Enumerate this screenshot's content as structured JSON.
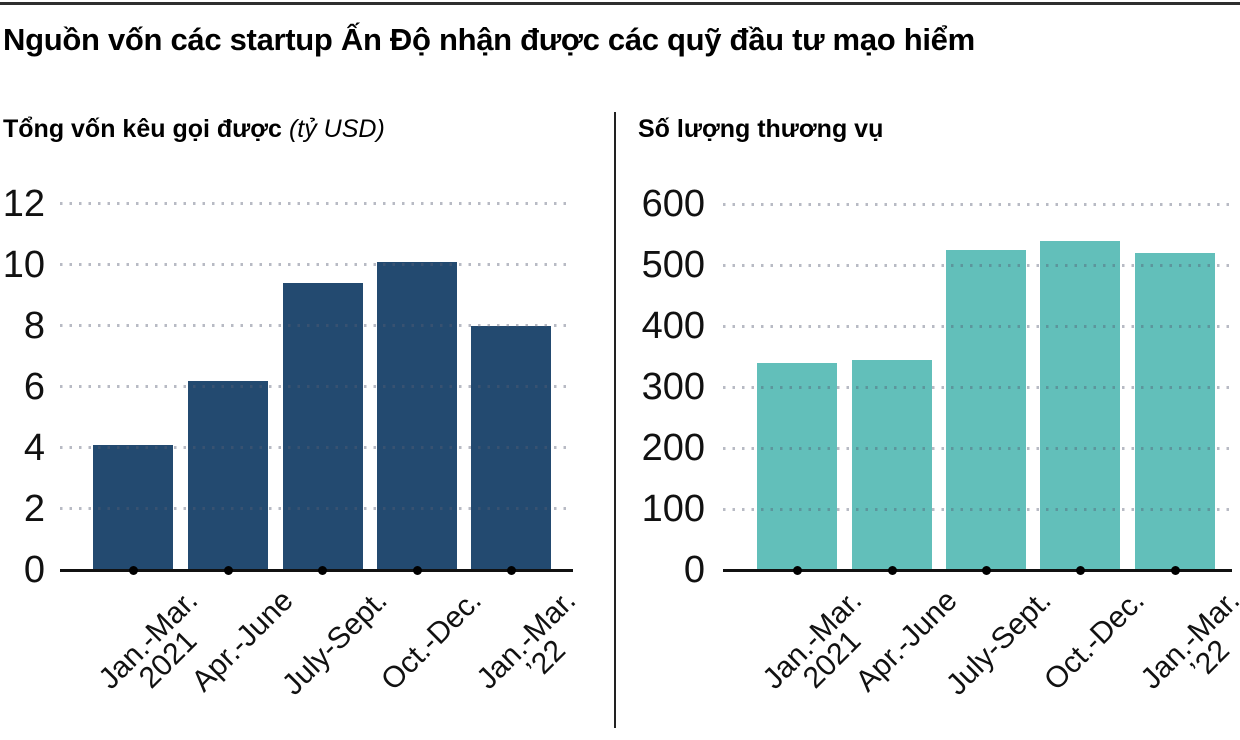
{
  "header": {
    "title": "Nguồn vốn các startup Ấn Độ nhận được các quỹ đầu tư mạo hiểm"
  },
  "panels": [
    {
      "subtitle": "Tổng vốn kêu gọi được",
      "unit_note": "(tỷ USD)"
    },
    {
      "subtitle": "Số lượng thương vụ",
      "unit_note": ""
    }
  ],
  "chart_data": [
    {
      "type": "bar",
      "title": "Tổng vốn kêu gọi được (tỷ USD)",
      "ylabel": "tỷ USD",
      "categories": [
        "Jan.-Mar. 2021",
        "Apr.-June",
        "July-Sept.",
        "Oct.-Dec.",
        "Jan.-Mar. ’22"
      ],
      "category_lines": [
        [
          "Jan.-Mar.",
          "2021"
        ],
        [
          "Apr.-June"
        ],
        [
          "July-Sept."
        ],
        [
          "Oct.-Dec."
        ],
        [
          "Jan.-Mar.",
          "’22"
        ]
      ],
      "values": [
        4.1,
        6.2,
        9.4,
        10.1,
        8
      ],
      "ylim": [
        0,
        12
      ],
      "ytick_step": 2,
      "grid": "dotted-horizontal",
      "legend": "none",
      "bar_color": "#234A70"
    },
    {
      "type": "bar",
      "title": "Số lượng thương vụ",
      "ylabel": "thương vụ",
      "categories": [
        "Jan.-Mar. 2021",
        "Apr.-June",
        "July-Sept.",
        "Oct.-Dec.",
        "Jan.-Mar. ’22"
      ],
      "category_lines": [
        [
          "Jan.-Mar.",
          "2021"
        ],
        [
          "Apr.-June"
        ],
        [
          "July-Sept."
        ],
        [
          "Oct.-Dec."
        ],
        [
          "Jan.-Mar.",
          "’22"
        ]
      ],
      "values": [
        340,
        345,
        525,
        540,
        520
      ],
      "ylim": [
        0,
        600
      ],
      "ytick_step": 100,
      "grid": "dotted-horizontal",
      "legend": "none",
      "bar_color": "#62BFBA"
    }
  ],
  "style": {
    "axis_color": "#111111",
    "grid_dot_color": "rgba(85,92,115,0.42)",
    "divider_color": "#222222",
    "top_rule_color": "#2e2e2e"
  }
}
